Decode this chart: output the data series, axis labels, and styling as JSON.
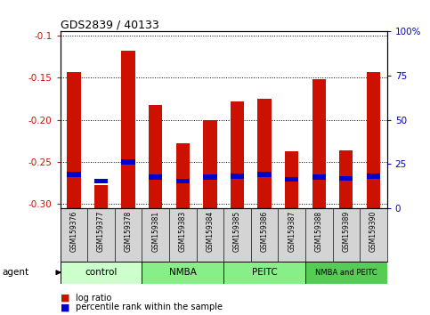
{
  "title": "GDS2839 / 40133",
  "samples": [
    "GSM159376",
    "GSM159377",
    "GSM159378",
    "GSM159381",
    "GSM159383",
    "GSM159384",
    "GSM159385",
    "GSM159386",
    "GSM159387",
    "GSM159388",
    "GSM159389",
    "GSM159390"
  ],
  "log_ratio": [
    -0.143,
    -0.278,
    -0.118,
    -0.183,
    -0.228,
    -0.2,
    -0.178,
    -0.175,
    -0.238,
    -0.152,
    -0.237,
    -0.143
  ],
  "percentile_scaled": [
    -0.265,
    -0.273,
    -0.25,
    -0.268,
    -0.273,
    -0.268,
    -0.267,
    -0.265,
    -0.271,
    -0.268,
    -0.27,
    -0.267
  ],
  "groups": [
    {
      "label": "control",
      "start": 0,
      "end": 3,
      "color": "#ccffcc"
    },
    {
      "label": "NMBA",
      "start": 3,
      "end": 6,
      "color": "#88ee88"
    },
    {
      "label": "PEITC",
      "start": 6,
      "end": 9,
      "color": "#88ee88"
    },
    {
      "label": "NMBA and PEITC",
      "start": 9,
      "end": 12,
      "color": "#55cc55"
    }
  ],
  "ylim_left": [
    -0.305,
    -0.095
  ],
  "ylim_right": [
    0,
    100
  ],
  "yticks_left": [
    -0.3,
    -0.25,
    -0.2,
    -0.15,
    -0.1
  ],
  "yticks_right": [
    0,
    25,
    50,
    75,
    100
  ],
  "bar_color": "#cc1100",
  "pct_color": "#0000cc",
  "bar_width": 0.5,
  "background_color": "#ffffff",
  "tick_label_color_left": "#cc1100",
  "tick_label_color_right": "#0000cc",
  "cell_bg": "#d8d8d8",
  "agent_label": "agent"
}
